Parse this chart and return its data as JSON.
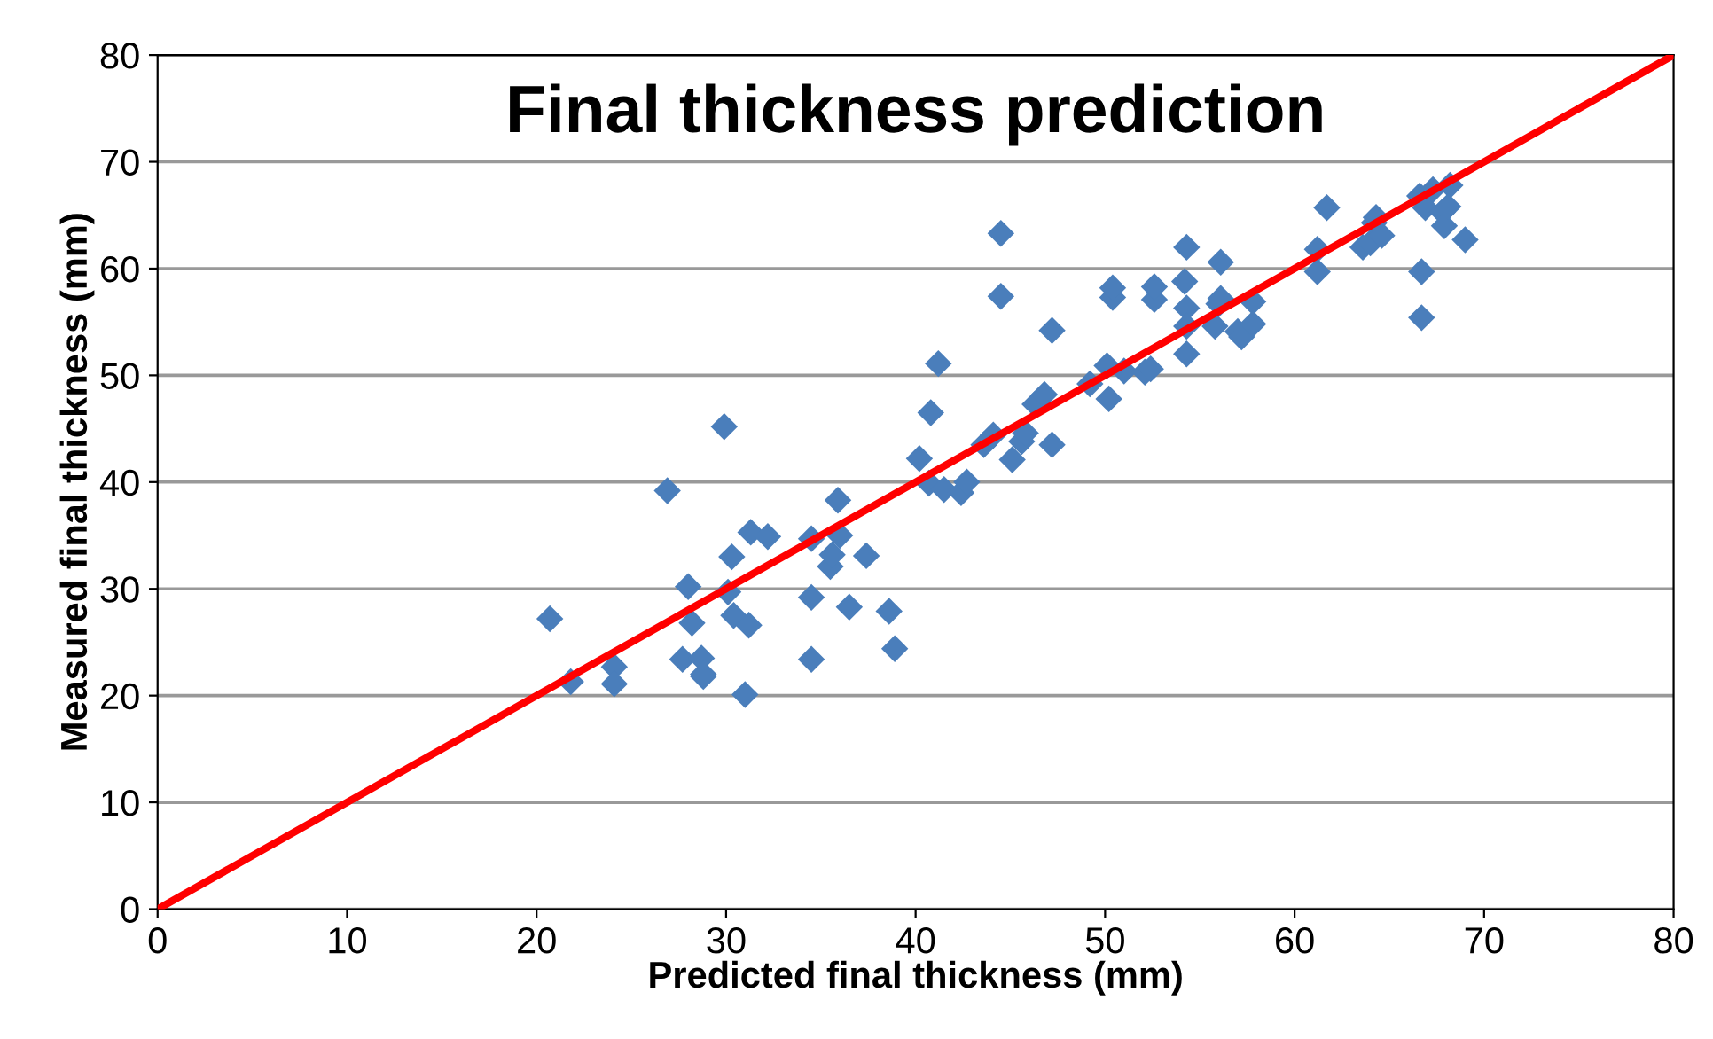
{
  "chart_data": {
    "type": "scatter",
    "title": "Final thickness prediction",
    "xlabel": "Predicted final thickness (mm)",
    "ylabel": "Measured final thickness (mm)",
    "xlim": [
      0,
      80
    ],
    "ylim": [
      0,
      80
    ],
    "xticks": [
      0,
      10,
      20,
      30,
      40,
      50,
      60,
      70,
      80
    ],
    "yticks": [
      0,
      10,
      20,
      30,
      40,
      50,
      60,
      70,
      80
    ],
    "grid": "y",
    "legend": false,
    "series": [
      {
        "color": "#4a7ebb",
        "marker": "diamond",
        "x": [
          20.7,
          21.8,
          24.1,
          24.1,
          26.9,
          27.7,
          28,
          28.2,
          28.7,
          28.8,
          28.8,
          29.9,
          30.1,
          30.3,
          30.4,
          31,
          31.2,
          31.3,
          32.2,
          34.5,
          34.5,
          34.5,
          35.5,
          35.6,
          35.9,
          36,
          36.5,
          37.4,
          38.6,
          38.9,
          40.2,
          40.7,
          40.8,
          41.2,
          41.5,
          42.4,
          42.7,
          43.6,
          44.1,
          44.5,
          44.5,
          45.1,
          45.6,
          45.8,
          46.3,
          46.8,
          47.2,
          47.2,
          49.2,
          50.1,
          50.2,
          50.4,
          50.4,
          51,
          52.1,
          52.4,
          52.6,
          52.6,
          54.3,
          54.2,
          54.3,
          54.3,
          54.3,
          55.8,
          56,
          56.1,
          56.1,
          57,
          57.2,
          57.8,
          57.8,
          61.2,
          61.2,
          61.7,
          63.6,
          64,
          64.2,
          64.3,
          64.6,
          66.6,
          66.7,
          66.7,
          66.9,
          67.3,
          67.8,
          67.9,
          68.2,
          68.1,
          69
        ],
        "values": [
          27.2,
          21.3,
          22.7,
          21.1,
          39.2,
          23.4,
          30.2,
          26.8,
          23.5,
          21.8,
          22,
          45.2,
          29.7,
          33,
          27.5,
          20.1,
          26.6,
          35.3,
          34.9,
          34.7,
          29.2,
          23.4,
          32.1,
          33.2,
          38.3,
          35,
          28.3,
          33.1,
          27.9,
          24.4,
          42.2,
          39.9,
          46.5,
          51.1,
          39.3,
          39,
          40,
          43.5,
          44.4,
          57.4,
          63.3,
          42.1,
          43.8,
          44.6,
          47.3,
          48.2,
          54.2,
          43.5,
          49.2,
          50.9,
          47.8,
          57.3,
          58.2,
          50.4,
          50.3,
          50.6,
          57.1,
          58.3,
          62,
          58.8,
          56.3,
          54.6,
          52,
          54.6,
          56.7,
          57.2,
          60.6,
          54.1,
          53.6,
          56.9,
          54.8,
          61.8,
          59.7,
          65.7,
          62,
          62.4,
          64.3,
          64.8,
          63.1,
          66.8,
          59.7,
          55.4,
          65.7,
          67.4,
          65.3,
          64,
          67.8,
          65.8,
          62.7
        ]
      },
      {
        "type": "line",
        "color": "#ff0000",
        "marker": "none",
        "line_style": "solid",
        "x": [
          0,
          80
        ],
        "values": [
          0,
          80
        ]
      }
    ]
  }
}
